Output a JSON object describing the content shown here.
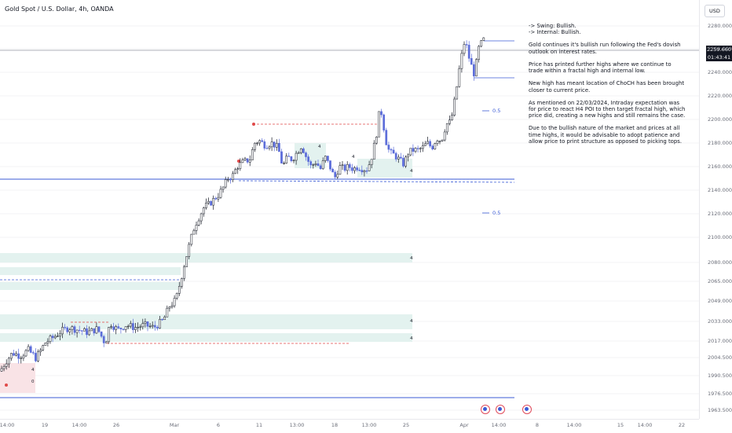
{
  "header": {
    "symbol_title": "Gold Spot / U.S. Dollar, 4h, OANDA",
    "currency_button": "USD"
  },
  "y_axis": {
    "ticks": [
      "2280.000",
      "2260.000",
      "2240.000",
      "2220.000",
      "2200.000",
      "2180.000",
      "2160.000",
      "2140.000",
      "2120.000",
      "2100.000",
      "2080.000",
      "2065.000",
      "2049.000",
      "2033.000",
      "2017.000",
      "2004.500",
      "1990.500",
      "1976.500",
      "1963.500"
    ],
    "price_label": "2259.660",
    "countdown": "01:43:41"
  },
  "x_axis": {
    "ticks": [
      "14:00",
      "19",
      "14:00",
      "26",
      "Mar",
      "6",
      "11",
      "13:00",
      "18",
      "13:00",
      "25",
      "Apr",
      "14:00",
      "8",
      "14:00",
      "15",
      "14:00",
      "22"
    ]
  },
  "annotation": {
    "lines": [
      "-> Swing:  Bullish.",
      "-> Internal:  Bullish.",
      "Gold continues it's bullish run following the Fed's dovish outlook on interest rates.",
      "Price has printed further highs where we continue to trade within a fractal high and internal low.",
      "New high has meant location of ChoCH has been brought closer to current price.",
      "As mentioned on 22/03/2024, Intraday expectation was for price to react H4 POI to then target fractal high, which price did, creating a new highs and still remains the case.",
      "Due to the bullish nature of the market and prices at all time highs, it would be advisable to adopt patience and allow price to print structure as opposed to picking tops."
    ]
  },
  "chart_labels": {
    "fib_upper": "0.5",
    "fib_lower": "0.5",
    "zone_markers": [
      "4",
      "4",
      "4",
      "4",
      "4",
      "4",
      "4"
    ],
    "zero_marker": "0"
  },
  "economic_events": [
    "us-flag-icon",
    "us-flag-icon",
    "us-flag-icon"
  ],
  "colors": {
    "bull_candle": "#131722",
    "bear_candle": "#5b6cd9",
    "zone_fill": "#e3f2ef",
    "swing_line": "#3b5bd6",
    "dashed_red": "#e04a4a",
    "dashed_blue": "#3b5bd6"
  },
  "chart_data": {
    "type": "candlestick",
    "title": "Gold Spot / U.S. Dollar, 4h, OANDA",
    "ylim": [
      1960,
      2290
    ],
    "y_ticks": [
      2280,
      2260,
      2240,
      2220,
      2200,
      2180,
      2160,
      2140,
      2120,
      2100,
      2080,
      2065,
      2049,
      2033,
      2017,
      2004.5,
      1990.5,
      1976.5,
      1963.5
    ],
    "last_price": 2259.66,
    "path": [
      [
        0,
        1994
      ],
      [
        8,
        2002
      ],
      [
        16,
        2008
      ],
      [
        26,
        2006
      ],
      [
        36,
        2010
      ],
      [
        46,
        2004
      ],
      [
        58,
        2016
      ],
      [
        68,
        2020
      ],
      [
        78,
        2025
      ],
      [
        88,
        2028
      ],
      [
        100,
        2026
      ],
      [
        112,
        2024
      ],
      [
        124,
        2027
      ],
      [
        134,
        2015
      ],
      [
        140,
        2032
      ],
      [
        150,
        2026
      ],
      [
        160,
        2030
      ],
      [
        172,
        2028
      ],
      [
        184,
        2030
      ],
      [
        196,
        2028
      ],
      [
        208,
        2034
      ],
      [
        216,
        2045
      ],
      [
        224,
        2050
      ],
      [
        230,
        2066
      ],
      [
        236,
        2082
      ],
      [
        242,
        2096
      ],
      [
        248,
        2110
      ],
      [
        254,
        2118
      ],
      [
        260,
        2126
      ],
      [
        266,
        2128
      ],
      [
        272,
        2132
      ],
      [
        278,
        2136
      ],
      [
        284,
        2142
      ],
      [
        290,
        2150
      ],
      [
        296,
        2152
      ],
      [
        302,
        2160
      ],
      [
        310,
        2164
      ],
      [
        318,
        2166
      ],
      [
        324,
        2180
      ],
      [
        330,
        2182
      ],
      [
        338,
        2178
      ],
      [
        346,
        2180
      ],
      [
        354,
        2176
      ],
      [
        360,
        2160
      ],
      [
        366,
        2168
      ],
      [
        372,
        2166
      ],
      [
        378,
        2172
      ],
      [
        384,
        2178
      ],
      [
        390,
        2168
      ],
      [
        396,
        2160
      ],
      [
        402,
        2164
      ],
      [
        408,
        2158
      ],
      [
        414,
        2168
      ],
      [
        420,
        2160
      ],
      [
        426,
        2150
      ],
      [
        432,
        2160
      ],
      [
        438,
        2158
      ],
      [
        444,
        2160
      ],
      [
        450,
        2158
      ],
      [
        456,
        2160
      ],
      [
        462,
        2158
      ],
      [
        468,
        2158
      ],
      [
        474,
        2170
      ],
      [
        480,
        2190
      ],
      [
        484,
        2212
      ],
      [
        488,
        2196
      ],
      [
        492,
        2180
      ],
      [
        496,
        2172
      ],
      [
        502,
        2170
      ],
      [
        508,
        2166
      ],
      [
        514,
        2162
      ],
      [
        520,
        2172
      ],
      [
        526,
        2174
      ],
      [
        532,
        2174
      ],
      [
        538,
        2176
      ],
      [
        544,
        2180
      ],
      [
        550,
        2176
      ],
      [
        556,
        2184
      ],
      [
        562,
        2182
      ],
      [
        568,
        2196
      ],
      [
        574,
        2198
      ],
      [
        580,
        2220
      ],
      [
        586,
        2248
      ],
      [
        592,
        2268
      ],
      [
        598,
        2250
      ],
      [
        604,
        2238
      ],
      [
        610,
        2262
      ],
      [
        616,
        2268
      ],
      [
        620,
        2262
      ]
    ]
  }
}
